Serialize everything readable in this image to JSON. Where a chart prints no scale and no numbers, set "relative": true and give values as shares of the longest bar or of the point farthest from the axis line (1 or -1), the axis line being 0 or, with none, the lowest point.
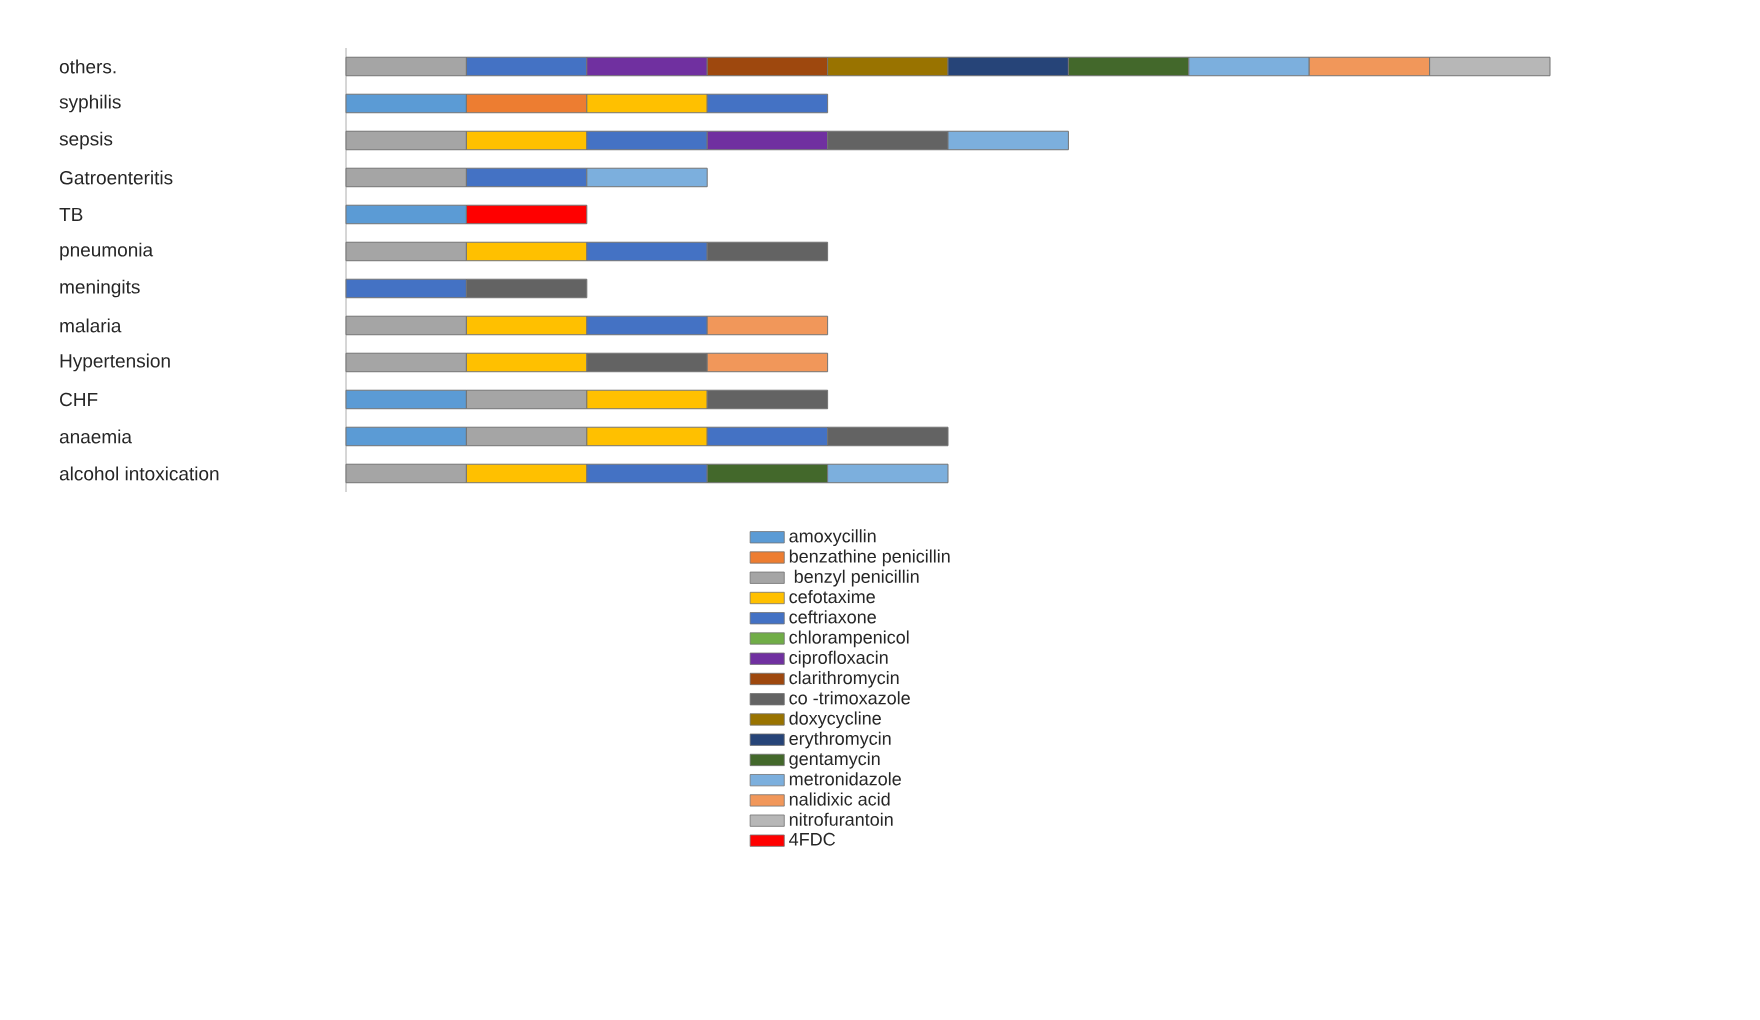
{
  "chart_data": {
    "type": "bar",
    "orientation": "horizontal",
    "stacked": true,
    "relative": true,
    "legend": "bottom",
    "categories": [
      "others.",
      "syphilis",
      "sepsis",
      "Gatroenteritis",
      "TB",
      "pneumonia",
      "meningits",
      "malaria",
      "Hypertension",
      "CHF",
      "anaemia",
      "alcohol intoxication"
    ],
    "series": [
      {
        "name": "amoxycillin",
        "color": "#5b9bd5",
        "values": [
          null,
          0.1,
          null,
          null,
          0.1,
          null,
          null,
          null,
          null,
          0.1,
          0.1,
          null
        ]
      },
      {
        "name": "benzathine penicillin",
        "color": "#ed7d31",
        "values": [
          null,
          0.1,
          null,
          null,
          null,
          null,
          null,
          null,
          null,
          null,
          null,
          null
        ]
      },
      {
        "name": " benzyl penicillin",
        "color": "#a5a5a5",
        "values": [
          0.1,
          null,
          0.1,
          0.1,
          null,
          0.1,
          null,
          0.1,
          0.1,
          0.1,
          0.1,
          0.1
        ]
      },
      {
        "name": "cefotaxime",
        "color": "#ffc000",
        "values": [
          null,
          0.1,
          0.1,
          null,
          null,
          0.1,
          null,
          0.1,
          0.1,
          0.1,
          0.1,
          0.1
        ]
      },
      {
        "name": "ceftriaxone",
        "color": "#4472c4",
        "values": [
          0.1,
          0.1,
          0.1,
          0.1,
          null,
          0.1,
          0.1,
          0.1,
          null,
          null,
          0.1,
          0.1
        ]
      },
      {
        "name": "chlorampenicol",
        "color": "#70ad47",
        "values": [
          null,
          null,
          null,
          null,
          null,
          null,
          null,
          null,
          null,
          null,
          null,
          null
        ]
      },
      {
        "name": "ciprofloxacin",
        "color": "#7030a0",
        "values": [
          0.1,
          null,
          0.1,
          null,
          null,
          null,
          null,
          null,
          null,
          null,
          null,
          null
        ]
      },
      {
        "name": "clarithromycin",
        "color": "#9e480e",
        "values": [
          0.1,
          null,
          null,
          null,
          null,
          null,
          null,
          null,
          null,
          null,
          null,
          null
        ]
      },
      {
        "name": "co -trimoxazole",
        "color": "#636363",
        "values": [
          null,
          null,
          0.1,
          null,
          null,
          0.1,
          0.1,
          null,
          0.1,
          0.1,
          0.1,
          null
        ]
      },
      {
        "name": "doxycycline",
        "color": "#997300",
        "values": [
          0.1,
          null,
          null,
          null,
          null,
          null,
          null,
          null,
          null,
          null,
          null,
          null
        ]
      },
      {
        "name": "erythromycin",
        "color": "#264478",
        "values": [
          0.1,
          null,
          null,
          null,
          null,
          null,
          null,
          null,
          null,
          null,
          null,
          null
        ]
      },
      {
        "name": "gentamycin",
        "color": "#43682b",
        "values": [
          0.1,
          null,
          null,
          null,
          null,
          null,
          null,
          null,
          null,
          null,
          null,
          0.1
        ]
      },
      {
        "name": "metronidazole",
        "color": "#7cafdd",
        "values": [
          0.1,
          null,
          0.1,
          0.1,
          null,
          null,
          null,
          null,
          null,
          null,
          null,
          0.1
        ]
      },
      {
        "name": "nalidixic acid",
        "color": "#f1975a",
        "values": [
          0.1,
          null,
          null,
          null,
          null,
          null,
          null,
          0.1,
          0.1,
          null,
          null,
          null
        ]
      },
      {
        "name": "nitrofurantoin",
        "color": "#b7b7b7",
        "values": [
          0.1,
          null,
          null,
          null,
          null,
          null,
          null,
          null,
          null,
          null,
          null,
          null
        ]
      },
      {
        "name": "4FDC",
        "color": "#ff0000",
        "values": [
          null,
          null,
          null,
          null,
          0.1,
          null,
          null,
          null,
          null,
          null,
          null,
          null
        ]
      }
    ]
  }
}
